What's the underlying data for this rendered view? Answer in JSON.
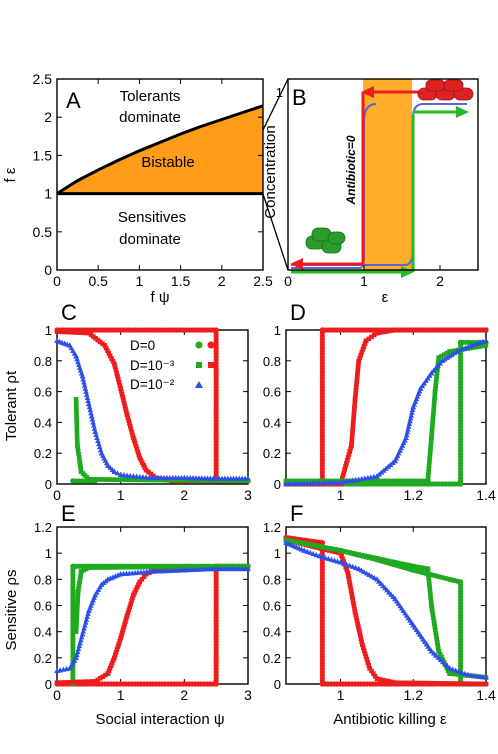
{
  "chart_data": [
    {
      "panel": "A",
      "type": "area",
      "xlabel": "f ψ",
      "ylabel": "f ε",
      "xlim": [
        0,
        2.5
      ],
      "ylim": [
        0,
        2.5
      ],
      "xticks": [
        "0",
        "0.5",
        "1",
        "1.5",
        "2",
        "2.5"
      ],
      "yticks": [
        "0",
        "0.5",
        "1",
        "1.5",
        "2",
        "2.5"
      ],
      "boundary_upper": {
        "x": [
          0,
          0.25,
          0.5,
          0.75,
          1.0,
          1.25,
          1.5,
          1.75,
          2.0,
          2.25,
          2.5
        ],
        "y": [
          1.0,
          1.17,
          1.31,
          1.44,
          1.56,
          1.67,
          1.78,
          1.88,
          1.97,
          2.06,
          2.15
        ]
      },
      "boundary_lower": {
        "x": [
          0,
          2.5
        ],
        "y": [
          1.0,
          1.0
        ]
      },
      "regions": [
        "Tolerants",
        "dominate",
        "Bistable",
        "Sensitives",
        "dominate"
      ]
    },
    {
      "panel": "B",
      "type": "line",
      "xlabel": "ε",
      "ylabel": "Concentration",
      "xlim": [
        0,
        2.5
      ],
      "xticks": [
        "0",
        "1",
        "2"
      ],
      "yticks": [
        "1"
      ],
      "bistable_band": [
        1.0,
        1.5
      ],
      "annotation": "Antibiotic=0"
    },
    {
      "panel": "C",
      "type": "scatter",
      "xlabel": "Social interaction ψ",
      "ylabel": "Tolerant ρt",
      "xlim": [
        0,
        3
      ],
      "ylim": [
        0,
        1
      ],
      "xticks": [
        "0",
        "1",
        "2",
        "3"
      ],
      "yticks": [
        "0",
        "0.2",
        "0.4",
        "0.6",
        "0.8",
        "1"
      ],
      "legend": [
        "D=0",
        "D=10⁻³",
        "D=10⁻²"
      ],
      "series": [
        {
          "name": "D=0",
          "color": "#ee1c1c",
          "marker": "circle",
          "x": [
            0,
            2.5,
            2.5,
            3.0
          ],
          "y": [
            1.0,
            1.0,
            0.02,
            0.02
          ]
        },
        {
          "name": "D=0",
          "color": "#1faa1f",
          "marker": "circle",
          "x": [
            0.25,
            0.25,
            0.6
          ],
          "y": [
            0.02,
            0.02,
            0.02
          ]
        },
        {
          "name": "D=10⁻³",
          "color": "#ee1c1c",
          "marker": "square",
          "x": [
            0,
            0.5,
            0.75,
            0.9,
            1.0,
            1.1,
            1.2,
            1.3,
            1.4,
            1.55,
            1.8,
            3.0
          ],
          "y": [
            0.99,
            0.98,
            0.9,
            0.78,
            0.62,
            0.45,
            0.3,
            0.17,
            0.09,
            0.04,
            0.02,
            0.02
          ]
        },
        {
          "name": "D=10⁻³",
          "color": "#1faa1f",
          "marker": "square",
          "x": [
            0.3,
            0.32,
            0.38,
            0.5,
            3.0
          ],
          "y": [
            0.55,
            0.25,
            0.08,
            0.03,
            0.02
          ]
        },
        {
          "name": "D=10⁻²",
          "color": "#2b50e8",
          "marker": "triangle",
          "x": [
            0,
            0.2,
            0.3,
            0.4,
            0.5,
            0.6,
            0.7,
            0.8,
            0.9,
            1.0,
            1.2,
            1.5,
            2.0,
            2.5,
            3.0
          ],
          "y": [
            0.93,
            0.9,
            0.83,
            0.7,
            0.52,
            0.34,
            0.2,
            0.12,
            0.08,
            0.06,
            0.05,
            0.04,
            0.04,
            0.035,
            0.035
          ]
        }
      ]
    },
    {
      "panel": "D",
      "type": "scatter",
      "xlabel": "",
      "ylabel": "",
      "xlim": [
        0.85,
        1.4
      ],
      "ylim": [
        0,
        1
      ],
      "xticks": [
        "1",
        "1.2",
        "1.4"
      ],
      "yticks": [
        "0",
        "0.2",
        "0.4",
        "0.6",
        "0.8",
        "1"
      ],
      "series": [
        {
          "name": "D=0",
          "color": "#ee1c1c",
          "marker": "circle",
          "x": [
            0.85,
            0.95,
            0.95,
            1.4
          ],
          "y": [
            0,
            0,
            1.0,
            1.0
          ]
        },
        {
          "name": "D=0",
          "color": "#1faa1f",
          "marker": "circle",
          "x": [
            0.85,
            1.33,
            1.33,
            1.4
          ],
          "y": [
            0,
            0,
            0.92,
            0.92
          ]
        },
        {
          "name": "D=10⁻³",
          "color": "#ee1c1c",
          "marker": "square",
          "x": [
            0.85,
            1.0,
            1.03,
            1.04,
            1.05,
            1.07,
            1.1,
            1.15,
            1.4
          ],
          "y": [
            0,
            0,
            0.25,
            0.55,
            0.8,
            0.93,
            0.98,
            1.0,
            1.0
          ]
        },
        {
          "name": "D=10⁻³",
          "color": "#1faa1f",
          "marker": "square",
          "x": [
            0.85,
            1.24,
            1.25,
            1.26,
            1.27,
            1.3,
            1.35,
            1.4
          ],
          "y": [
            0.02,
            0.02,
            0.3,
            0.6,
            0.82,
            0.86,
            0.88,
            0.9
          ]
        },
        {
          "name": "D=10⁻²",
          "color": "#2b50e8",
          "marker": "triangle",
          "x": [
            0.85,
            1.0,
            1.1,
            1.15,
            1.18,
            1.2,
            1.22,
            1.25,
            1.28,
            1.32,
            1.36,
            1.4
          ],
          "y": [
            0.0,
            0.01,
            0.05,
            0.15,
            0.3,
            0.5,
            0.62,
            0.72,
            0.8,
            0.86,
            0.9,
            0.93
          ]
        }
      ]
    },
    {
      "panel": "E",
      "type": "scatter",
      "xlabel": "Social interaction ψ",
      "ylabel": "Sensitive ρs",
      "xlim": [
        0,
        3
      ],
      "ylim": [
        0,
        1.2
      ],
      "xticks": [
        "0",
        "1",
        "2",
        "3"
      ],
      "yticks": [
        "0",
        "0.2",
        "0.4",
        "0.6",
        "0.8",
        "1",
        "1.2"
      ],
      "series": [
        {
          "name": "D=0",
          "color": "#ee1c1c",
          "marker": "circle",
          "x": [
            0,
            2.5,
            2.5,
            3.0
          ],
          "y": [
            0,
            0,
            0.9,
            0.9
          ]
        },
        {
          "name": "D=0",
          "color": "#1faa1f",
          "marker": "circle",
          "x": [
            0.25,
            0.25,
            3.0
          ],
          "y": [
            0.0,
            0.9,
            0.9
          ]
        },
        {
          "name": "D=10⁻³",
          "color": "#ee1c1c",
          "marker": "square",
          "x": [
            0,
            0.6,
            0.8,
            0.9,
            1.0,
            1.1,
            1.2,
            1.3,
            1.4,
            1.55,
            1.8,
            3.0
          ],
          "y": [
            0.01,
            0.02,
            0.08,
            0.2,
            0.35,
            0.52,
            0.68,
            0.78,
            0.84,
            0.87,
            0.89,
            0.9
          ]
        },
        {
          "name": "D=10⁻³",
          "color": "#1faa1f",
          "marker": "square",
          "x": [
            0.3,
            0.33,
            0.38,
            0.5,
            3.0
          ],
          "y": [
            0.4,
            0.7,
            0.86,
            0.89,
            0.9
          ]
        },
        {
          "name": "D=10⁻²",
          "color": "#2b50e8",
          "marker": "triangle",
          "x": [
            0,
            0.2,
            0.3,
            0.4,
            0.5,
            0.6,
            0.7,
            0.8,
            1.0,
            1.5,
            2.0,
            2.5,
            3.0
          ],
          "y": [
            0.1,
            0.12,
            0.2,
            0.38,
            0.56,
            0.68,
            0.76,
            0.8,
            0.84,
            0.86,
            0.87,
            0.88,
            0.88
          ]
        }
      ]
    },
    {
      "panel": "F",
      "type": "scatter",
      "xlabel": "Antibiotic killing ε",
      "ylabel": "",
      "xlim": [
        0.85,
        1.4
      ],
      "ylim": [
        0,
        1.2
      ],
      "xticks": [
        "1",
        "1.2",
        "1.4"
      ],
      "yticks": [
        "0",
        "0.2",
        "0.4",
        "0.6",
        "0.8",
        "1",
        "1.2"
      ],
      "series": [
        {
          "name": "D=0",
          "color": "#ee1c1c",
          "marker": "circle",
          "x": [
            0.85,
            0.95,
            0.95,
            1.4
          ],
          "y": [
            1.12,
            1.08,
            0.0,
            0.0
          ]
        },
        {
          "name": "D=0",
          "color": "#1faa1f",
          "marker": "circle",
          "x": [
            0.85,
            1.0,
            1.1,
            1.2,
            1.3,
            1.33,
            1.33,
            1.4
          ],
          "y": [
            1.1,
            1.02,
            0.95,
            0.87,
            0.8,
            0.78,
            0.0,
            0.0
          ]
        },
        {
          "name": "D=10⁻³",
          "color": "#ee1c1c",
          "marker": "square",
          "x": [
            0.85,
            1.0,
            1.02,
            1.04,
            1.06,
            1.08,
            1.1,
            1.15,
            1.4
          ],
          "y": [
            1.1,
            1.0,
            0.85,
            0.55,
            0.3,
            0.12,
            0.04,
            0.01,
            0.0
          ]
        },
        {
          "name": "D=10⁻³",
          "color": "#1faa1f",
          "marker": "square",
          "x": [
            0.85,
            1.0,
            1.1,
            1.2,
            1.24,
            1.25,
            1.27,
            1.3,
            1.4
          ],
          "y": [
            1.1,
            1.02,
            0.96,
            0.9,
            0.88,
            0.6,
            0.25,
            0.08,
            0.05
          ]
        },
        {
          "name": "D=10⁻²",
          "color": "#2b50e8",
          "marker": "triangle",
          "x": [
            0.85,
            0.9,
            0.95,
            1.0,
            1.05,
            1.1,
            1.15,
            1.2,
            1.25,
            1.3,
            1.35,
            1.4
          ],
          "y": [
            1.08,
            1.02,
            0.97,
            0.93,
            0.88,
            0.8,
            0.65,
            0.45,
            0.25,
            0.12,
            0.07,
            0.05
          ]
        }
      ]
    }
  ]
}
